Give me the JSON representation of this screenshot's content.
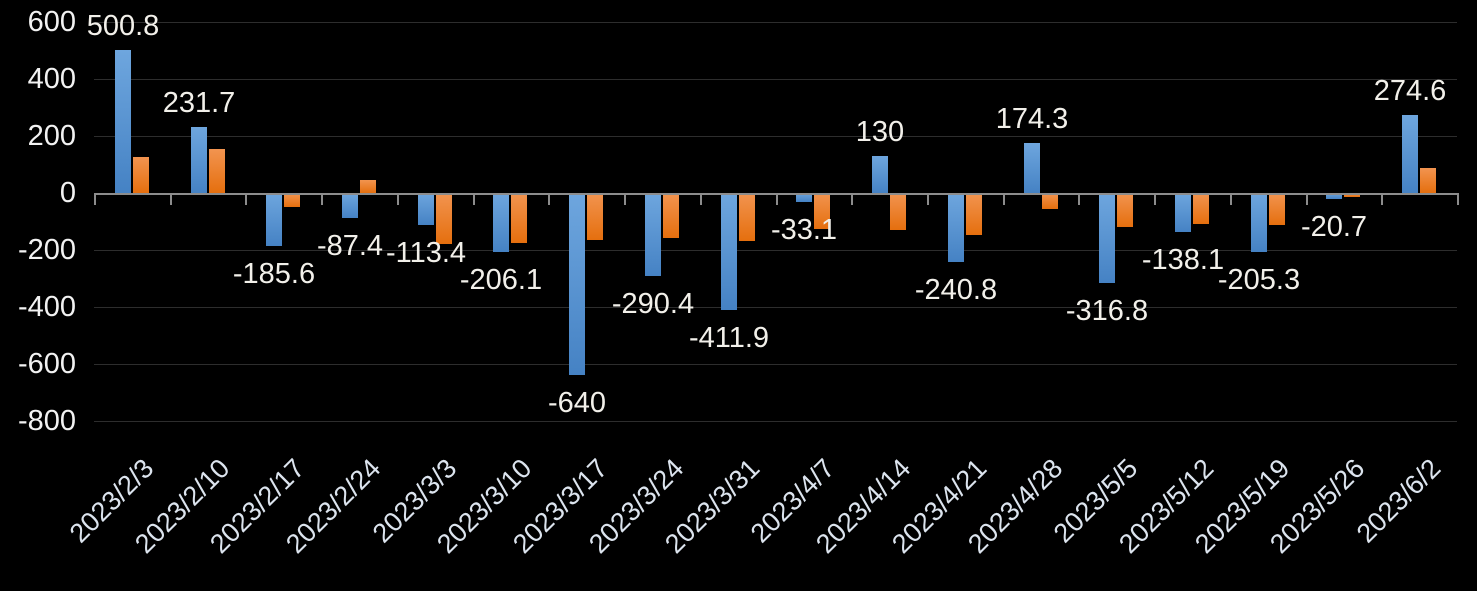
{
  "chart_data": {
    "type": "bar",
    "title": "",
    "xlabel": "",
    "ylabel": "",
    "background": "#000000",
    "grid": true,
    "legend": "none",
    "ylim": [
      -800,
      600
    ],
    "y_ticks": [
      600,
      400,
      200,
      0,
      -200,
      -400,
      -600,
      -800
    ],
    "categories": [
      "2023/2/3",
      "2023/2/10",
      "2023/2/17",
      "2023/2/24",
      "2023/3/3",
      "2023/3/10",
      "2023/3/17",
      "2023/3/24",
      "2023/3/31",
      "2023/4/7",
      "2023/4/14",
      "2023/4/21",
      "2023/4/28",
      "2023/5/5",
      "2023/5/12",
      "2023/5/19",
      "2023/5/26",
      "2023/6/2"
    ],
    "series": [
      {
        "name": "blue-series",
        "color": "#5B9BD5",
        "color_gradient": [
          "#6EA6DE",
          "#4582C4"
        ],
        "values": [
          500.8,
          231.7,
          -185.6,
          -87.4,
          -113.4,
          -206.1,
          -640,
          -290.4,
          -411.9,
          -33.1,
          130,
          -240.8,
          174.3,
          -316.8,
          -138.1,
          -205.3,
          -20.7,
          274.6
        ],
        "data_labels": [
          "500.8",
          "231.7",
          "-185.6",
          "-87.4",
          "-113.4",
          "-206.1",
          "-640",
          "-290.4",
          "-411.9",
          "-33.1",
          "130",
          "-240.8",
          "174.3",
          "-316.8",
          "-138.1",
          "-205.3",
          "-20.7",
          "274.6"
        ],
        "data_labels_shown": true
      },
      {
        "name": "orange-series",
        "color": "#ED7D31",
        "color_gradient": [
          "#F29450",
          "#E56F0E"
        ],
        "values": [
          127,
          153,
          -50,
          45,
          -180,
          -176,
          -165,
          -158,
          -170,
          -126,
          -130,
          -147,
          -56,
          -119,
          -107,
          -111,
          -15,
          88
        ],
        "values_estimated": true,
        "data_labels_shown": false
      }
    ],
    "axis_colors": {
      "gridline": "#2D2D2D",
      "axis_line": "#8C8C8C",
      "y_label_text": "#F2F2F2",
      "x_label_text": "#DCE4EE",
      "data_label_text": "#F2F0EA"
    }
  }
}
